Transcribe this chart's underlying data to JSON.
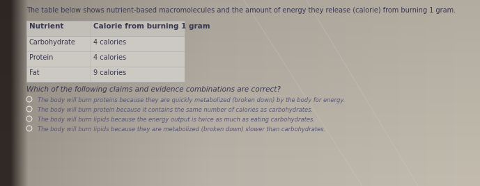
{
  "bg_color_left": "#7a6e64",
  "bg_color_center": "#b8b3a8",
  "bg_color_right": "#c8c3b8",
  "title_text": "The table below shows nutrient-based macromolecules and the amount of energy they release (calorie) from burning 1 gram.",
  "table_headers": [
    "Nutrient",
    "Calorie from burning 1 gram"
  ],
  "table_rows": [
    [
      "Carbohydrate",
      "4 calories"
    ],
    [
      "Protein",
      "4 calories"
    ],
    [
      "Fat",
      "9 calories"
    ]
  ],
  "question": "Which of the following claims and evidence combinations are correct?",
  "options": [
    "The body will burn proteins because they are quickly metabolized (broken down) by the body for energy.",
    "The body will burn protein because it contains the same number of calories as carbohydrates.",
    "The body will burn lipids because the energy output is twice as much as eating carbohydrates.",
    "The body will burn lipids because they are metabolized (broken down) slower than carbohydrates."
  ],
  "title_fontsize": 7.0,
  "header_fontsize": 7.5,
  "row_fontsize": 7.0,
  "question_fontsize": 7.5,
  "option_fontsize": 6.0,
  "text_color": "#3a3850",
  "option_color": "#5a5870",
  "table_bg": "#ccc9c2",
  "table_line_color": "#aaaaaa"
}
